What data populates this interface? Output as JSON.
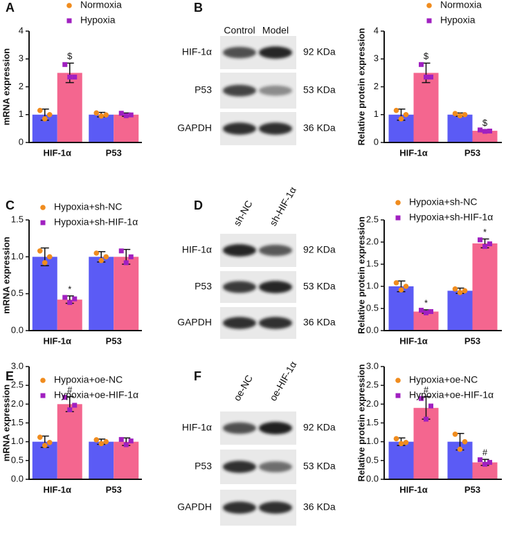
{
  "panels": [
    "A",
    "B",
    "C",
    "D",
    "E",
    "F"
  ],
  "blots": [
    {
      "columns": [
        "Control",
        "Model"
      ],
      "rows": [
        "HIF-1α",
        "P53",
        "GAPDH"
      ],
      "sizes": [
        "92 KDa",
        "53 KDa",
        "36 KDa"
      ]
    },
    {
      "columns": [
        "sh-NC",
        "sh-HIF-1α"
      ],
      "rows": [
        "HIF-1α",
        "P53",
        "GAPDH"
      ],
      "sizes": [
        "92 KDa",
        "53 KDa",
        "36 KDa"
      ]
    },
    {
      "columns": [
        "oe-NC",
        "oe-HIF-1α"
      ],
      "rows": [
        "HIF-1α",
        "P53",
        "GAPDH"
      ],
      "sizes": [
        "92 KDa",
        "53 KDa",
        "36 KDa"
      ]
    }
  ],
  "chart_data": [
    {
      "type": "bar",
      "y_label": "mRNA expression",
      "categories": [
        "HIF-1α",
        "P53"
      ],
      "ylim": [
        0,
        4
      ],
      "yticks": [
        0,
        1,
        2,
        3,
        4
      ],
      "series": [
        {
          "name": "Normoxia",
          "color": "#5b5bf5",
          "point_color": "#f08c1e",
          "marker": "circle",
          "values": [
            1.0,
            1.0
          ],
          "errors": [
            0.2,
            0.08
          ],
          "points": [
            [
              1.15,
              0.85,
              1.0
            ],
            [
              1.06,
              0.95,
              0.99
            ]
          ],
          "annotations": [
            null,
            null
          ]
        },
        {
          "name": "Hypoxia",
          "color": "#f4668f",
          "point_color": "#a020c0",
          "marker": "square",
          "values": [
            2.5,
            1.0
          ],
          "errors": [
            0.35,
            0.06
          ],
          "points": [
            [
              2.8,
              2.35,
              2.35
            ],
            [
              1.05,
              0.96,
              0.99
            ]
          ],
          "annotations": [
            "$",
            null
          ]
        }
      ]
    },
    {
      "type": "bar",
      "y_label": "Relative protein expression",
      "categories": [
        "HIF-1α",
        "P53"
      ],
      "ylim": [
        0,
        4
      ],
      "yticks": [
        0,
        1,
        2,
        3,
        4
      ],
      "series": [
        {
          "name": "Normoxia",
          "color": "#5b5bf5",
          "point_color": "#f08c1e",
          "marker": "circle",
          "values": [
            1.0,
            1.0
          ],
          "errors": [
            0.2,
            0.06
          ],
          "points": [
            [
              1.15,
              0.85,
              1.0
            ],
            [
              1.04,
              0.96,
              1.0
            ]
          ],
          "annotations": [
            null,
            null
          ]
        },
        {
          "name": "Hypoxia",
          "color": "#f4668f",
          "point_color": "#a020c0",
          "marker": "square",
          "values": [
            2.5,
            0.42
          ],
          "errors": [
            0.35,
            0.04
          ],
          "points": [
            [
              2.8,
              2.35,
              2.35
            ],
            [
              0.45,
              0.4,
              0.41
            ]
          ],
          "annotations": [
            "$",
            "$"
          ]
        }
      ]
    },
    {
      "type": "bar",
      "y_label": "mRNA expression",
      "categories": [
        "HIF-1α",
        "P53"
      ],
      "ylim": [
        0,
        1.5
      ],
      "yticks": [
        {
          "value": 0,
          "label": "0.0"
        },
        0.5,
        {
          "value": 1,
          "label": "1.0"
        },
        1.5
      ],
      "series": [
        {
          "name": "Hypoxia+sh-NC",
          "color": "#5b5bf5",
          "point_color": "#f08c1e",
          "marker": "circle",
          "values": [
            1.0,
            1.0
          ],
          "errors": [
            0.12,
            0.07
          ],
          "points": [
            [
              1.08,
              0.92,
              1.0
            ],
            [
              1.05,
              0.95,
              1.0
            ]
          ],
          "annotations": [
            null,
            null
          ]
        },
        {
          "name": "Hypoxia+sh-HIF-1α",
          "color": "#f4668f",
          "point_color": "#a020c0",
          "marker": "square",
          "values": [
            0.42,
            1.0
          ],
          "errors": [
            0.05,
            0.1
          ],
          "points": [
            [
              0.45,
              0.38,
              0.43
            ],
            [
              1.08,
              0.92,
              1.0
            ]
          ],
          "annotations": [
            "*",
            null
          ]
        }
      ]
    },
    {
      "type": "bar",
      "y_label": "Relative protein expression",
      "categories": [
        "HIF-1α",
        "P53"
      ],
      "ylim": [
        0,
        2.5
      ],
      "yticks": [
        {
          "value": 0,
          "label": "0.0"
        },
        0.5,
        {
          "value": 1,
          "label": "1.0"
        },
        1.5,
        {
          "value": 2,
          "label": "2.0"
        },
        2.5
      ],
      "series": [
        {
          "name": "Hypoxia+sh-NC",
          "color": "#5b5bf5",
          "point_color": "#f08c1e",
          "marker": "circle",
          "values": [
            1.0,
            0.9
          ],
          "errors": [
            0.12,
            0.06
          ],
          "points": [
            [
              1.08,
              0.92,
              1.0
            ],
            [
              0.94,
              0.86,
              0.9
            ]
          ],
          "annotations": [
            null,
            null
          ]
        },
        {
          "name": "Hypoxia+sh-HIF-1α",
          "color": "#f4668f",
          "point_color": "#a020c0",
          "marker": "square",
          "values": [
            0.43,
            1.97
          ],
          "errors": [
            0.04,
            0.1
          ],
          "points": [
            [
              0.46,
              0.4,
              0.43
            ],
            [
              2.05,
              1.9,
              1.96
            ]
          ],
          "annotations": [
            "*",
            "*"
          ]
        }
      ]
    },
    {
      "type": "bar",
      "y_label": "mRNA expression",
      "categories": [
        "HIF-1α",
        "P53"
      ],
      "ylim": [
        0,
        3
      ],
      "yticks": [
        {
          "value": 0,
          "label": "0.0"
        },
        0.5,
        {
          "value": 1,
          "label": "1.0"
        },
        1.5,
        {
          "value": 2,
          "label": "2.0"
        },
        2.5,
        {
          "value": 3,
          "label": "3.0"
        }
      ],
      "series": [
        {
          "name": "Hypoxia+oe-NC",
          "color": "#5b5bf5",
          "point_color": "#f08c1e",
          "marker": "circle",
          "values": [
            1.0,
            1.0
          ],
          "errors": [
            0.15,
            0.07
          ],
          "points": [
            [
              1.12,
              0.9,
              0.98
            ],
            [
              1.05,
              0.95,
              1.0
            ]
          ],
          "annotations": [
            null,
            null
          ]
        },
        {
          "name": "Hypoxia+oe-HIF-1α",
          "color": "#f4668f",
          "point_color": "#a020c0",
          "marker": "square",
          "values": [
            2.0,
            1.0
          ],
          "errors": [
            0.2,
            0.1
          ],
          "points": [
            [
              2.18,
              1.85,
              1.97
            ],
            [
              1.06,
              0.92,
              1.02
            ]
          ],
          "annotations": [
            "#",
            null
          ]
        }
      ]
    },
    {
      "type": "bar",
      "y_label": "Relative protein expression",
      "categories": [
        "HIF-1α",
        "P53"
      ],
      "ylim": [
        0,
        3
      ],
      "yticks": [
        {
          "value": 0,
          "label": "0.0"
        },
        0.5,
        {
          "value": 1,
          "label": "1.0"
        },
        1.5,
        {
          "value": 2,
          "label": "2.0"
        },
        2.5,
        {
          "value": 3,
          "label": "3.0"
        }
      ],
      "series": [
        {
          "name": "Hypoxia+oe-NC",
          "color": "#5b5bf5",
          "point_color": "#f08c1e",
          "marker": "circle",
          "values": [
            1.0,
            1.0
          ],
          "errors": [
            0.1,
            0.22
          ],
          "points": [
            [
              1.08,
              0.95,
              0.98
            ],
            [
              1.2,
              0.8,
              1.0
            ]
          ],
          "annotations": [
            null,
            null
          ]
        },
        {
          "name": "Hypoxia+oe-HIF-1α",
          "color": "#f4668f",
          "point_color": "#a020c0",
          "marker": "square",
          "values": [
            1.9,
            0.45
          ],
          "errors": [
            0.3,
            0.08
          ],
          "points": [
            [
              2.15,
              1.6,
              1.95
            ],
            [
              0.52,
              0.4,
              0.45
            ]
          ],
          "annotations": [
            "#",
            "#"
          ]
        }
      ]
    }
  ]
}
